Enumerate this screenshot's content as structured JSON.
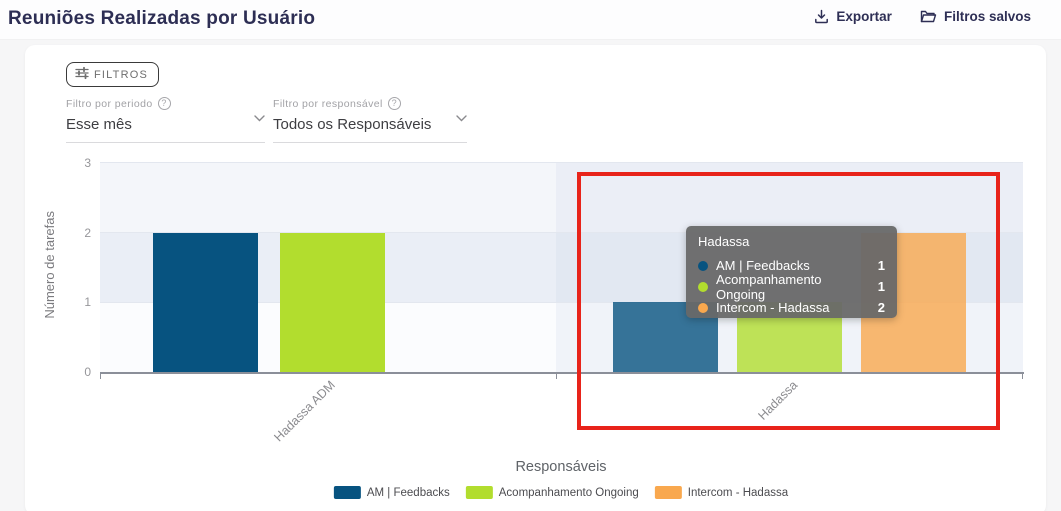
{
  "page": {
    "title": "Reuniões Realizadas por Usuário"
  },
  "header_actions": {
    "export": "Exportar",
    "saved_filters": "Filtros salvos"
  },
  "filters": {
    "toggle_label": "FILTROS",
    "period": {
      "label": "Filtro por periodo",
      "value": "Esse mês"
    },
    "responsible": {
      "label": "Filtro por responsável",
      "value": "Todos os Responsáveis"
    }
  },
  "chart_data": {
    "type": "bar",
    "title": "",
    "categories": [
      "Hadassa ADM",
      "Hadassa"
    ],
    "series": [
      {
        "name": "AM | Feedbacks",
        "color": "#075380",
        "values": [
          2,
          1
        ]
      },
      {
        "name": "Acompanhamento Ongoing",
        "color": "#b2dd2e",
        "values": [
          2,
          1
        ]
      },
      {
        "name": "Intercom - Hadassa",
        "color": "#f9a84e",
        "values": [
          null,
          2
        ]
      }
    ],
    "xlabel": "Responsáveis",
    "ylabel": "Número de tarefas",
    "yticks": [
      0,
      1,
      2,
      3
    ],
    "ylim": [
      0,
      3
    ],
    "grid": true,
    "legend_position": "bottom",
    "highlighted_category": "Hadassa"
  },
  "tooltip": {
    "title": "Hadassa",
    "rows": [
      {
        "label": "AM | Feedbacks",
        "value": "1",
        "color": "#075380"
      },
      {
        "label": "Acompanhamento Ongoing",
        "value": "1",
        "color": "#b2dd2e"
      },
      {
        "label": "Intercom - Hadassa",
        "value": "2",
        "color": "#f9a84e"
      }
    ]
  },
  "colors": {
    "accent_navy": "#2d2e54",
    "annotation_red": "#e8231a",
    "axis_gray": "#8b8f99"
  }
}
